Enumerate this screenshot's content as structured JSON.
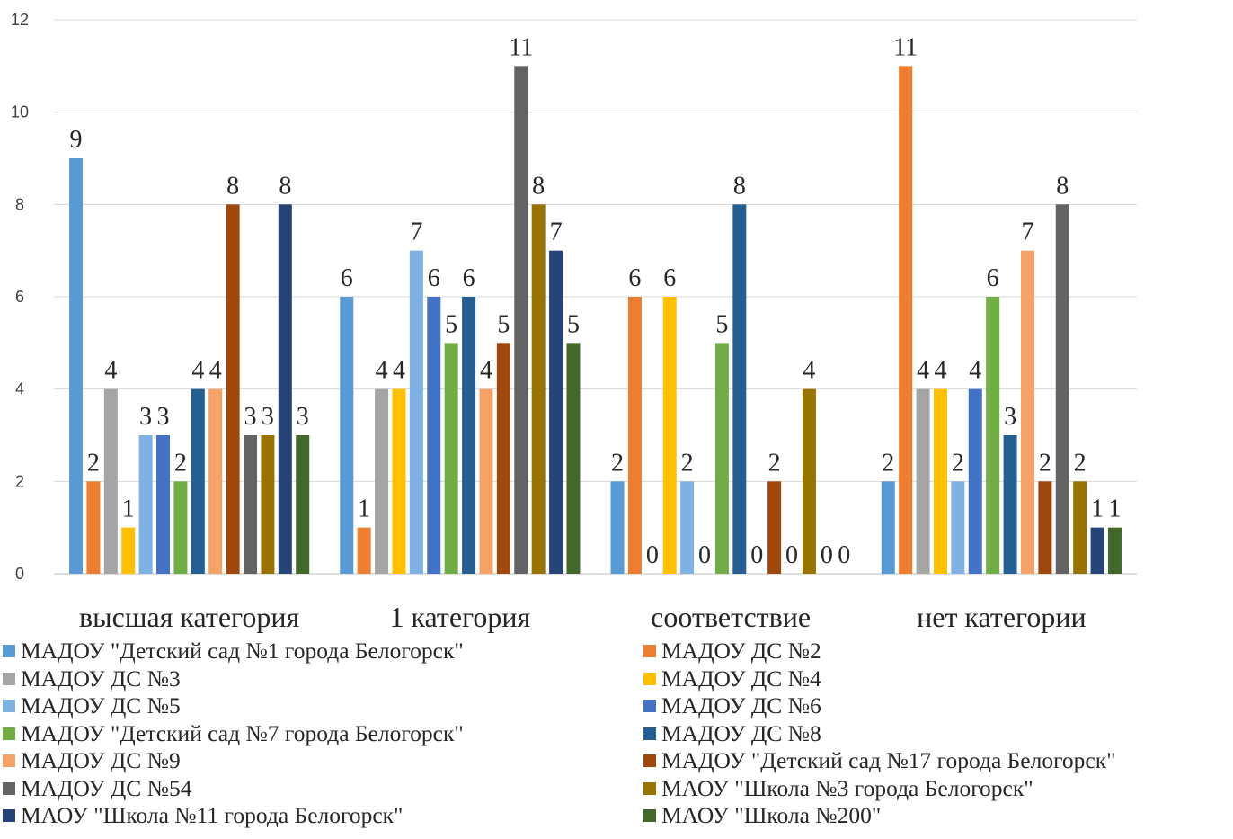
{
  "chart_data": {
    "type": "bar",
    "categories": [
      "высшая категория",
      "1 категория",
      "соответствие",
      "нет категории"
    ],
    "ylim": [
      0,
      12
    ],
    "yticks": [
      "0",
      "2",
      "4",
      "6",
      "8",
      "10",
      "12"
    ],
    "grid": true,
    "legend_position": "bottom",
    "series": [
      {
        "name": "МАДОУ \"Детский сад №1 города Белогорск\"",
        "color": "#5B9BD5",
        "values": [
          9,
          6,
          2,
          2
        ]
      },
      {
        "name": "МАДОУ ДС №2",
        "color": "#ED7D31",
        "values": [
          2,
          1,
          6,
          11
        ]
      },
      {
        "name": "МАДОУ ДС №3",
        "color": "#A5A5A5",
        "values": [
          4,
          4,
          0,
          4
        ]
      },
      {
        "name": "МАДОУ ДС №4",
        "color": "#FFC000",
        "values": [
          1,
          4,
          6,
          4
        ]
      },
      {
        "name": "МАДОУ ДС №5",
        "color": "#7FB1E3",
        "values": [
          3,
          7,
          2,
          2
        ]
      },
      {
        "name": "МАДОУ ДС №6",
        "color": "#4472C4",
        "values": [
          3,
          6,
          0,
          4
        ]
      },
      {
        "name": "МАДОУ \"Детский сад №7 города Белогорск\"",
        "color": "#70AD47",
        "values": [
          2,
          5,
          5,
          6
        ]
      },
      {
        "name": "МАДОУ ДС №8",
        "color": "#255E91",
        "values": [
          4,
          6,
          8,
          3
        ]
      },
      {
        "name": "МАДОУ ДС №9",
        "color": "#F4A268",
        "values": [
          4,
          4,
          0,
          7
        ]
      },
      {
        "name": "МАДОУ \"Детский сад №17 города Белогорск\"",
        "color": "#9E480E",
        "values": [
          8,
          5,
          2,
          2
        ]
      },
      {
        "name": "МАДОУ ДС №54",
        "color": "#636363",
        "values": [
          3,
          11,
          0,
          8
        ]
      },
      {
        "name": "МАОУ \"Школа №3 города Белогорск\"",
        "color": "#997300",
        "values": [
          3,
          8,
          4,
          2
        ]
      },
      {
        "name": "МАОУ \"Школа №11 города Белогорск\"",
        "color": "#264478",
        "values": [
          8,
          7,
          0,
          1
        ]
      },
      {
        "name": "МАОУ \"Школа №200\"",
        "color": "#43682B",
        "values": [
          3,
          5,
          0,
          1
        ]
      }
    ]
  }
}
